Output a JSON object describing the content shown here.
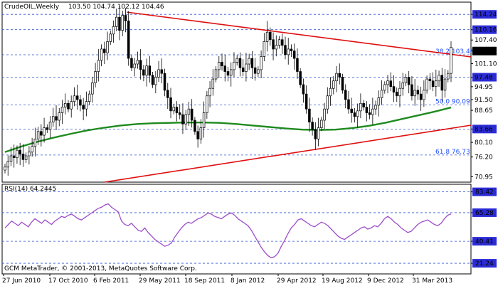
{
  "chart_data": [
    {
      "type": "candlestick",
      "title": "CrudeOIL,Weekly",
      "ohlc_header": "103.50 104.74 102.12 104.46",
      "last_price": "104.46",
      "ylim": [
        69.5,
        117.5
      ],
      "y_ticks": [
        "114.24",
        "110.16",
        "107.40",
        "104.46",
        "101.10",
        "97.48",
        "94.95",
        "91.50",
        "88.65",
        "83.66",
        "80.10",
        "76.20",
        "70.95"
      ],
      "highlighted_ticks": [
        "114.24",
        "110.16",
        "97.48",
        "83.66"
      ],
      "x_ticks": [
        "27 Jun 2010",
        "17 Oct 2010",
        "6 Feb 2011",
        "29 May 2011",
        "18 Sep 2011",
        "8 Jan 2012",
        "29 Apr 2012",
        "19 Aug 2012",
        "9 Dec 2012",
        "31 Mar 2013"
      ],
      "levels": [
        {
          "label": "",
          "value": 114.24
        },
        {
          "label": "",
          "value": 110.16
        },
        {
          "label": "38.2 103.46",
          "value": 103.46
        },
        {
          "label": "",
          "value": 97.48
        },
        {
          "label": "50.0 90.09",
          "value": 90.09
        },
        {
          "label": "",
          "value": 83.66
        },
        {
          "label": "61.8 76.73",
          "value": 76.73
        }
      ],
      "price_series": [
        72.5,
        74.0,
        75.5,
        75.0,
        77.0,
        76.0,
        74.5,
        75.5,
        76.5,
        78.0,
        80.0,
        82.0,
        81.0,
        83.0,
        82.5,
        84.5,
        86.0,
        85.0,
        87.0,
        88.5,
        89.5,
        88.0,
        90.0,
        91.5,
        90.5,
        89.0,
        88.0,
        90.0,
        92.0,
        95.0,
        98.0,
        101.0,
        104.0,
        103.0,
        106.0,
        108.0,
        110.0,
        112.5,
        109.0,
        113.0,
        111.5,
        101.5,
        99.0,
        100.0,
        101.0,
        98.5,
        97.0,
        99.5,
        97.0,
        94.5,
        96.5,
        98.5,
        97.5,
        93.0,
        91.0,
        87.5,
        88.5,
        87.0,
        86.5,
        84.0,
        86.5,
        88.0,
        85.0,
        82.0,
        80.0,
        83.0,
        87.0,
        91.5,
        93.5,
        96.0,
        98.5,
        100.5,
        99.5,
        98.0,
        97.0,
        98.5,
        100.5,
        101.5,
        99.0,
        98.0,
        100.0,
        101.5,
        99.0,
        97.5,
        98.5,
        102.0,
        106.0,
        108.5,
        106.5,
        104.0,
        105.0,
        106.5,
        105.0,
        102.5,
        104.0,
        103.5,
        101.5,
        98.0,
        94.5,
        92.0,
        88.0,
        84.5,
        82.5,
        80.0,
        83.0,
        85.0,
        88.0,
        91.5,
        93.5,
        95.5,
        97.5,
        96.5,
        93.0,
        90.5,
        88.0,
        87.0,
        86.0,
        87.5,
        89.5,
        88.5,
        87.0,
        86.5,
        88.0,
        89.0,
        91.0,
        93.0,
        94.5,
        95.5,
        94.0,
        92.5,
        91.5,
        93.5,
        95.0,
        96.5,
        94.5,
        91.5,
        93.0,
        92.0,
        90.5,
        93.0,
        96.0,
        95.5,
        94.0,
        95.5,
        97.0,
        93.0,
        96.0,
        97.5,
        104.46
      ],
      "ma_series": [
        76.5,
        78.0,
        79.3,
        80.4,
        81.4,
        82.3,
        83.0,
        83.6,
        84.0,
        84.2,
        84.3,
        84.4,
        84.4,
        84.3,
        84.0,
        83.6,
        83.2,
        82.8,
        82.5,
        82.4,
        82.5,
        82.9,
        83.5,
        84.3,
        85.3,
        86.3,
        87.3,
        88.4
      ],
      "price_ylim": [
        70,
        115
      ],
      "ma_ylim": [
        76,
        89
      ]
    },
    {
      "type": "line",
      "title": "RSI(14) 64.2445",
      "ylim": [
        12,
        90
      ],
      "y_ticks": [
        "83.42",
        "65.28",
        "40.41",
        "21.24"
      ],
      "highlighted_ticks": [
        "83.42",
        "65.28",
        "40.41",
        "21.24"
      ],
      "levels": [
        83.42,
        65.28,
        40.41,
        21.24
      ],
      "rsi_series": [
        52,
        55,
        58,
        56,
        54,
        57,
        55,
        53,
        57,
        60,
        58,
        56,
        59,
        57,
        55,
        58,
        60,
        62,
        61,
        63,
        64,
        62,
        60,
        59,
        61,
        63,
        65,
        67,
        69,
        70,
        72,
        73,
        70,
        68,
        66,
        58,
        55,
        54,
        56,
        53,
        50,
        49,
        52,
        48,
        45,
        42,
        40,
        38,
        36,
        37,
        39,
        44,
        48,
        52,
        55,
        57,
        56,
        58,
        60,
        61,
        63,
        65,
        64,
        62,
        61,
        60,
        62,
        64,
        65,
        63,
        60,
        58,
        56,
        54,
        50,
        45,
        40,
        35,
        31,
        28,
        26,
        27,
        30,
        36,
        41,
        47,
        52,
        55,
        59,
        60,
        58,
        56,
        54,
        53,
        55,
        57,
        56,
        54,
        51,
        48,
        45,
        43,
        42,
        44,
        46,
        48,
        50,
        52,
        53,
        51,
        52,
        54,
        53,
        56,
        60,
        62,
        60,
        57,
        55,
        52,
        50,
        48,
        49,
        52,
        55,
        57,
        58,
        59,
        57,
        55,
        54,
        56,
        60,
        63,
        64.2445
      ]
    }
  ],
  "footer": {
    "copyright": "GCM MetaTrader, © 2001-2013, MetaQuotes Software Corp."
  },
  "colors": {
    "candle": "#000000",
    "ma": "#1f8a1f",
    "trendline": "#e01010",
    "rsi": "#9b4dca",
    "level_grid": "#3355cc",
    "tick_highlight_bg": "#2b2bd6",
    "last_price_bg": "#000000"
  }
}
